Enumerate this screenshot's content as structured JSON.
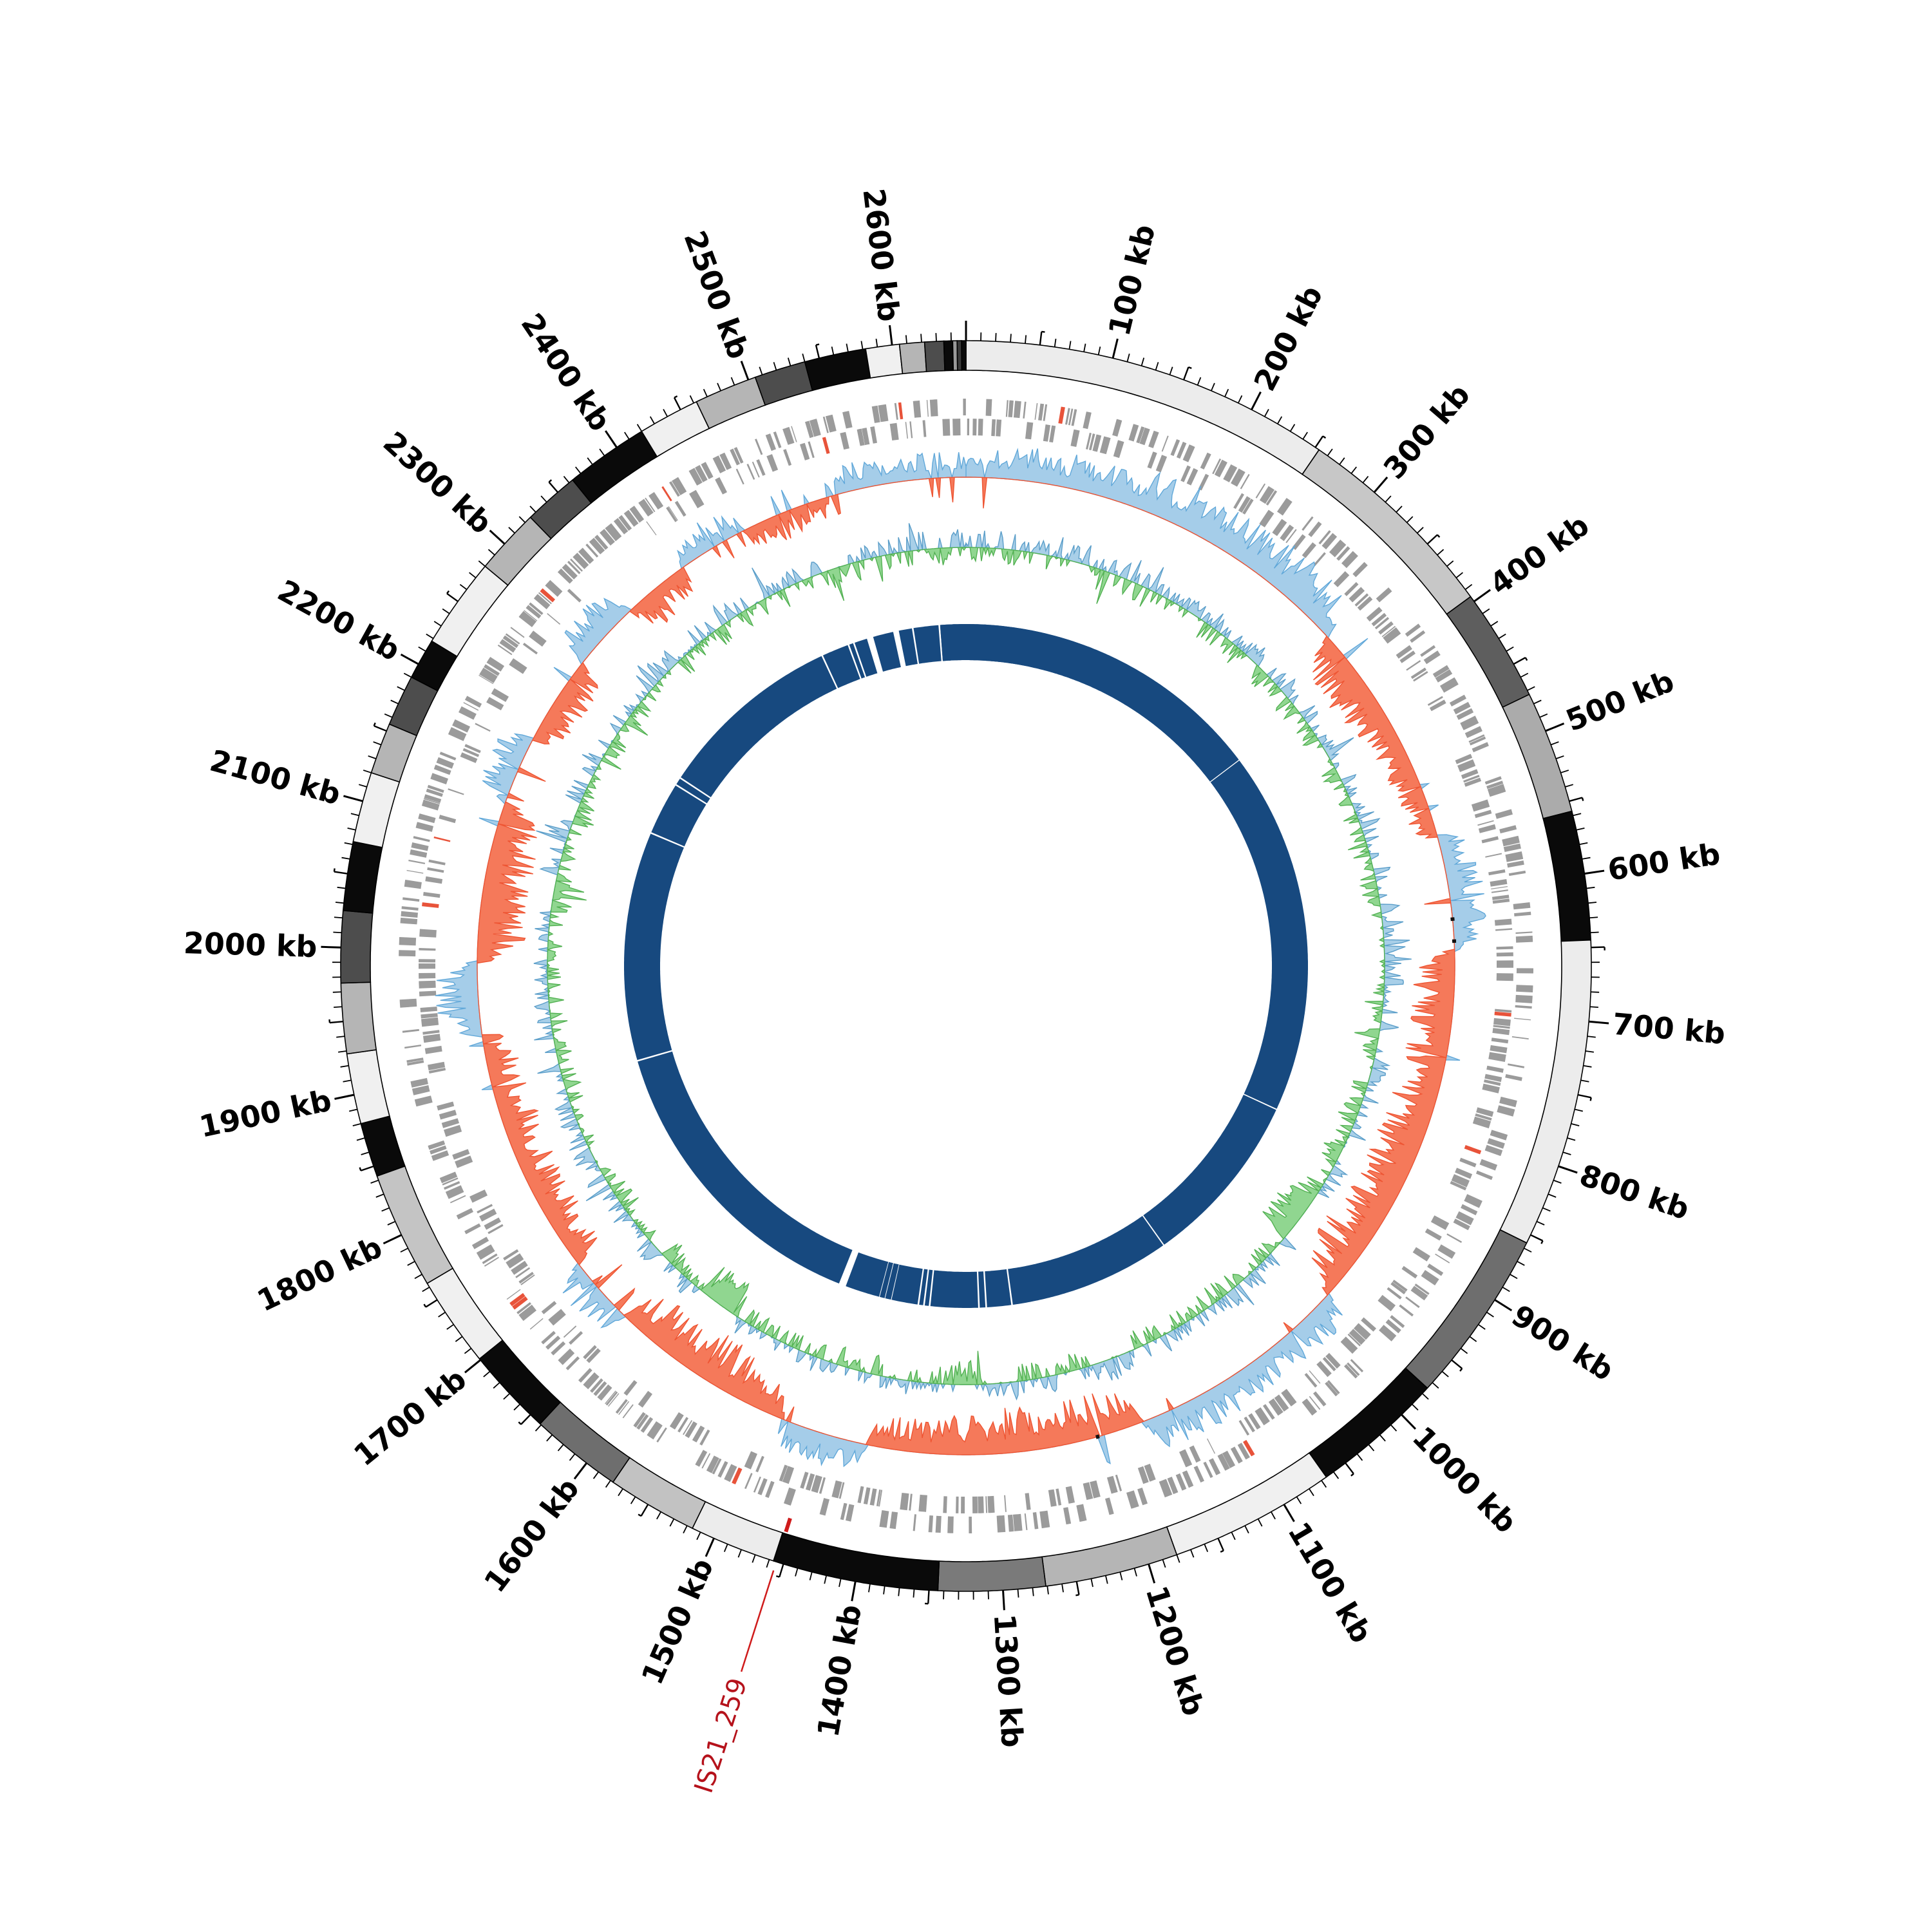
{
  "figure": {
    "kind": "circular-genome-plot",
    "background": "#ffffff"
  },
  "genome": {
    "length_kb": 2650,
    "unit": "kb",
    "major_tick_kb": 100,
    "medium_tick_kb": 50,
    "minor_tick_kb": 10,
    "tick_labels": [
      "100 kb",
      "200 kb",
      "300 kb",
      "400 kb",
      "500 kb",
      "600 kb",
      "700 kb",
      "800 kb",
      "900 kb",
      "1000 kb",
      "1100 kb",
      "1200 kb",
      "1300 kb",
      "1400 kb",
      "1500 kb",
      "1600 kb",
      "1700 kb",
      "1800 kb",
      "1900 kb",
      "2000 kb",
      "2100 kb",
      "2200 kb",
      "2300 kb",
      "2400 kb",
      "2500 kb",
      "2600 kb"
    ]
  },
  "annotation": {
    "label": "IS21_259",
    "position_kb": 1455,
    "text_color": "#b5121b",
    "line_color": "#cf1b1b"
  },
  "colors": {
    "contig_outline": "#000000",
    "gene_block": "#9b9b9b",
    "gene_block_highlight": "#e8533a",
    "skew_positive_fill": "#a5cde9",
    "skew_positive_stroke": "#61a8d9",
    "skew_negative_fill": "#f5795a",
    "skew_negative_stroke": "#ee5533",
    "gc_positive_fill": "#a8cfe8",
    "gc_positive_stroke": "#5b9ec9",
    "gc_negative_fill": "#90d690",
    "gc_negative_stroke": "#53b153",
    "inner_ring": "#17497f",
    "trna_mark": "#111111"
  },
  "chart_data": {
    "type": "circular-genome-plot",
    "genome_length_kb": 2650,
    "sample_step_kb": 20,
    "rings_order_outer_to_inner": [
      "contigs",
      "tick-scale",
      "gene-blocks-forward",
      "gene-blocks-reverse",
      "gc-skew",
      "gc-content-deviation",
      "alignment-coverage"
    ],
    "radii": {
      "contig_inner": 925,
      "contig_outer": 971,
      "tick_base": 971,
      "minor_tick_end": 984,
      "medium_tick_end": 992,
      "major_tick_end": 1002,
      "label_anchor": 1008,
      "gene_fwd_inner": 855,
      "gene_fwd_outer": 881,
      "gene_rev_inner": 824,
      "gene_rev_outer": 850,
      "skew_baseline": 759,
      "skew_amp_out": 80,
      "skew_amp_in": 85,
      "gc_baseline": 650,
      "gc_amp": 52,
      "inner_ring_inner": 475,
      "inner_ring_outer": 531
    },
    "contig_segments": [
      [
        0,
        253,
        "#ececec"
      ],
      [
        253,
        396,
        "#c7c7c7"
      ],
      [
        396,
        473,
        "#5e5e5e"
      ],
      [
        473,
        557,
        "#ababab"
      ],
      [
        557,
        645,
        "#0a0a0a"
      ],
      [
        645,
        856,
        "#ececec"
      ],
      [
        856,
        975,
        "#6e6e6e"
      ],
      [
        975,
        1066,
        "#0a0a0a"
      ],
      [
        1066,
        1180,
        "#f0f0f0"
      ],
      [
        1180,
        1271,
        "#b5b5b5"
      ],
      [
        1271,
        1344,
        "#7a7a7a"
      ],
      [
        1344,
        1457,
        "#0a0a0a"
      ],
      [
        1457,
        1516,
        "#ececec"
      ],
      [
        1516,
        1578,
        "#c2c2c2"
      ],
      [
        1578,
        1641,
        "#6e6e6e"
      ],
      [
        1641,
        1701,
        "#0a0a0a"
      ],
      [
        1701,
        1763,
        "#f0f0f0"
      ],
      [
        1763,
        1843,
        "#c4c4c4"
      ],
      [
        1843,
        1880,
        "#0a0a0a"
      ],
      [
        1880,
        1928,
        "#f0f0f0"
      ],
      [
        1928,
        1976,
        "#b5b5b5"
      ],
      [
        1976,
        2025,
        "#4d4d4d"
      ],
      [
        2025,
        2072,
        "#0a0a0a"
      ],
      [
        2072,
        2120,
        "#f0f0f0"
      ],
      [
        2120,
        2155,
        "#b5b5b5"
      ],
      [
        2155,
        2190,
        "#4d4d4d"
      ],
      [
        2190,
        2218,
        "#0a0a0a"
      ],
      [
        2218,
        2280,
        "#f0f0f0"
      ],
      [
        2280,
        2325,
        "#b5b5b5"
      ],
      [
        2325,
        2363,
        "#4d4d4d"
      ],
      [
        2363,
        2420,
        "#0a0a0a"
      ],
      [
        2420,
        2462,
        "#f0f0f0"
      ],
      [
        2462,
        2505,
        "#b5b5b5"
      ],
      [
        2505,
        2540,
        "#4d4d4d"
      ],
      [
        2540,
        2582,
        "#0a0a0a"
      ],
      [
        2582,
        2605,
        "#f0f0f0"
      ],
      [
        2605,
        2622,
        "#b5b5b5"
      ],
      [
        2622,
        2635,
        "#4d4d4d"
      ],
      [
        2635,
        2641,
        "#0a0a0a"
      ],
      [
        2641,
        2644,
        "#9a9a9a"
      ],
      [
        2644,
        2647,
        "#3a3a3a"
      ],
      [
        2647,
        2650,
        "#0a0a0a"
      ]
    ],
    "inner_ring_gaps": [
      [
        390,
        1.2
      ],
      [
        845,
        1.5
      ],
      [
        1065,
        1.5
      ],
      [
        1268,
        2
      ],
      [
        1300,
        2
      ],
      [
        1309,
        2
      ],
      [
        1370,
        2
      ],
      [
        1377,
        2
      ],
      [
        1384,
        2
      ],
      [
        1418,
        0.8
      ],
      [
        1426,
        0.8
      ],
      [
        1433,
        0.8
      ],
      [
        1481,
        9
      ],
      [
        1869,
        2
      ],
      [
        2156,
        2
      ],
      [
        2223,
        2
      ],
      [
        2233,
        2
      ],
      [
        2467,
        2
      ],
      [
        2502,
        2
      ],
      [
        2509,
        2
      ],
      [
        2530,
        8
      ],
      [
        2563,
        7
      ],
      [
        2584,
        2
      ],
      [
        2617,
        2
      ]
    ],
    "gene_red_positions_kb": [
      72,
      118,
      333,
      418,
      700,
      808,
      960,
      1101,
      1163,
      1205,
      1330,
      1405,
      1502,
      1717,
      2035,
      2088,
      2292,
      2412,
      2540,
      2600
    ],
    "trna_marks_kb": [
      622,
      641,
      1210
    ],
    "gene_block_seed": 1337,
    "series_seed": 917,
    "gc_skew_macro": [
      0.45,
      0.5,
      0.5,
      0.55,
      0.6,
      0.55,
      0.6,
      0.65,
      0.8,
      0.85,
      0.9,
      0.85,
      0.8,
      0.85,
      0.9,
      0.85,
      0.8,
      0.75,
      -0.55,
      -0.7,
      -0.75,
      -0.7,
      -0.65,
      -0.6,
      -0.5,
      -0.35,
      -0.3,
      -0.35,
      0.5,
      0.6,
      0.65,
      0.6,
      0.5,
      -0.6,
      -0.7,
      -0.75,
      -0.8,
      -0.75,
      -0.7,
      -0.75,
      -0.8,
      -0.85,
      -0.9,
      -0.85,
      -0.8,
      -0.85,
      -0.9,
      -0.85,
      -0.7,
      0.45,
      0.55,
      0.5,
      0.45,
      0.6,
      0.65,
      0.6,
      0.55,
      0.6,
      0.5,
      -0.7,
      -0.8,
      -0.85,
      -0.8,
      -0.75,
      -0.8,
      -0.75,
      -0.7,
      -0.6,
      -0.55,
      -0.5,
      -0.45,
      0.4,
      0.45,
      0.5,
      0.4,
      -0.7,
      -0.8,
      -0.85,
      -0.9,
      -0.85,
      -0.8,
      -0.75,
      -0.7,
      0.45,
      0.55,
      0.5,
      -0.45,
      -0.5,
      -0.55,
      -0.5,
      -0.55,
      -0.6,
      -0.65,
      -0.6,
      -0.55,
      -0.5,
      -0.45,
      0.7,
      0.8,
      0.75,
      -0.75,
      -0.85,
      -0.9,
      -0.85,
      -0.8,
      -0.75,
      -0.7,
      0.5,
      0.55,
      0.5,
      -0.4,
      -0.45,
      -0.5,
      -0.4,
      0.55,
      0.6,
      0.55,
      -0.45,
      -0.5,
      -0.45,
      0.45,
      0.5,
      0.45,
      -0.3,
      -0.35,
      -0.3,
      -0.25,
      0.35,
      0.4,
      0.35,
      0.3,
      0.35,
      0.3
    ],
    "gc_content_macro": [
      0.12,
      -0.1,
      0.08,
      -0.14,
      0.1,
      -0.06,
      0.14,
      -0.12,
      0.06,
      -0.08,
      0.12,
      -0.1,
      0.08,
      -0.14,
      0.1,
      -0.06,
      0.14,
      -0.12,
      0.06,
      -0.08,
      0.12,
      -0.1,
      0.08,
      -0.14,
      0.1,
      -0.06,
      0.14,
      -0.12,
      0.06,
      -0.08,
      0.12,
      0.3,
      0.35,
      0.3,
      0.1,
      -0.06,
      0.14,
      -0.12,
      0.06,
      -0.08,
      0.12,
      -0.1,
      0.08,
      -0.14,
      0.1,
      -0.06,
      -0.85,
      -0.9,
      0.06,
      -0.08,
      0.12,
      -0.1,
      0.08,
      -0.14,
      0.1,
      -0.06,
      0.14,
      -0.12,
      0.06,
      0.4,
      0.12,
      -0.1,
      0.08,
      -0.14,
      0.1,
      -0.06,
      -0.4,
      -0.12,
      0.06,
      -0.08,
      0.12,
      -0.1,
      0.08,
      -0.14,
      0.1,
      -0.06,
      0.14,
      -0.12,
      0.06,
      -0.75,
      -0.85,
      -0.1,
      0.08,
      -0.14,
      0.1,
      -0.06,
      0.14,
      -0.12,
      0.06,
      0.35,
      0.12,
      -0.1,
      0.08,
      -0.14,
      0.1,
      -0.06,
      0.14,
      -0.12,
      0.06,
      -0.08,
      0.12,
      -0.1,
      0.08,
      -0.5,
      0.1,
      -0.06,
      0.14,
      -0.12,
      0.06,
      -0.08,
      0.12,
      -0.1,
      0.08,
      -0.14,
      0.1,
      0.3,
      0.14,
      -0.12,
      0.06,
      -0.08,
      0.12,
      -0.1,
      0.08,
      -0.14,
      0.1,
      -0.06,
      -0.35,
      -0.12,
      0.06,
      -0.08,
      0.12,
      -0.1,
      0.08
    ]
  }
}
